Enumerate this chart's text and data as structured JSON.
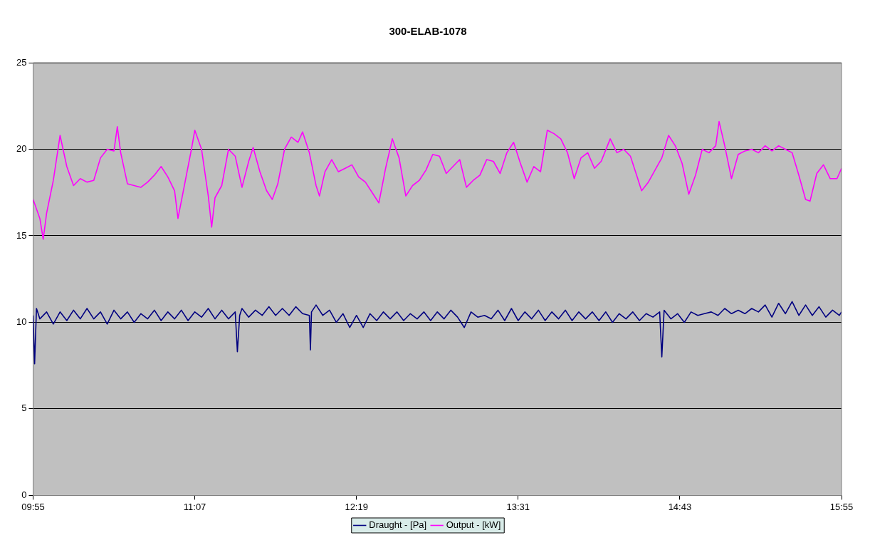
{
  "chart_data": {
    "type": "line",
    "title": "300-ELAB-1078",
    "xlim": [
      9.9167,
      15.9167
    ],
    "xticks": [
      {
        "value": 9.9167,
        "label": "09:55"
      },
      {
        "value": 11.1167,
        "label": "11:07"
      },
      {
        "value": 12.3167,
        "label": "12:19"
      },
      {
        "value": 13.5167,
        "label": "13:31"
      },
      {
        "value": 14.7167,
        "label": "14:43"
      },
      {
        "value": 15.9167,
        "label": "15:55"
      }
    ],
    "ylim": [
      0,
      25
    ],
    "yticks": [
      0,
      5,
      10,
      15,
      20,
      25
    ],
    "grid": "y",
    "legend": "bottom",
    "marker": "none",
    "series": [
      {
        "name": "Draught - [Pa]",
        "color": "#000080",
        "x": [
          9.917,
          9.928,
          9.942,
          9.967,
          10.017,
          10.067,
          10.117,
          10.167,
          10.217,
          10.267,
          10.317,
          10.367,
          10.417,
          10.467,
          10.517,
          10.567,
          10.617,
          10.667,
          10.717,
          10.767,
          10.817,
          10.867,
          10.917,
          10.967,
          11.017,
          11.067,
          11.117,
          11.167,
          11.217,
          11.267,
          11.317,
          11.367,
          11.417,
          11.433,
          11.45,
          11.467,
          11.517,
          11.567,
          11.617,
          11.667,
          11.717,
          11.767,
          11.817,
          11.867,
          11.917,
          11.967,
          11.975,
          11.983,
          12.017,
          12.067,
          12.117,
          12.167,
          12.217,
          12.267,
          12.317,
          12.367,
          12.417,
          12.467,
          12.517,
          12.567,
          12.617,
          12.667,
          12.717,
          12.767,
          12.817,
          12.867,
          12.917,
          12.967,
          13.017,
          13.067,
          13.117,
          13.167,
          13.217,
          13.267,
          13.317,
          13.367,
          13.417,
          13.467,
          13.517,
          13.567,
          13.617,
          13.667,
          13.717,
          13.767,
          13.817,
          13.867,
          13.917,
          13.967,
          14.017,
          14.067,
          14.117,
          14.167,
          14.217,
          14.267,
          14.317,
          14.367,
          14.417,
          14.467,
          14.517,
          14.567,
          14.583,
          14.6,
          14.65,
          14.7,
          14.75,
          14.8,
          14.85,
          14.9,
          14.95,
          15.0,
          15.05,
          15.1,
          15.15,
          15.2,
          15.25,
          15.3,
          15.35,
          15.4,
          15.45,
          15.5,
          15.55,
          15.6,
          15.65,
          15.7,
          15.75,
          15.8,
          15.85,
          15.9,
          15.9167
        ],
        "values": [
          10.4,
          7.6,
          10.8,
          10.2,
          10.6,
          9.9,
          10.6,
          10.1,
          10.7,
          10.2,
          10.8,
          10.2,
          10.6,
          9.9,
          10.7,
          10.2,
          10.6,
          10.0,
          10.5,
          10.2,
          10.7,
          10.1,
          10.6,
          10.2,
          10.7,
          10.1,
          10.6,
          10.3,
          10.8,
          10.2,
          10.7,
          10.2,
          10.6,
          8.3,
          10.4,
          10.8,
          10.3,
          10.7,
          10.4,
          10.9,
          10.4,
          10.8,
          10.4,
          10.9,
          10.5,
          10.4,
          8.4,
          10.6,
          11.0,
          10.4,
          10.7,
          10.0,
          10.5,
          9.7,
          10.4,
          9.7,
          10.5,
          10.1,
          10.6,
          10.2,
          10.6,
          10.1,
          10.5,
          10.2,
          10.6,
          10.1,
          10.6,
          10.2,
          10.7,
          10.3,
          9.7,
          10.6,
          10.3,
          10.4,
          10.2,
          10.7,
          10.1,
          10.8,
          10.1,
          10.6,
          10.2,
          10.7,
          10.1,
          10.6,
          10.2,
          10.7,
          10.1,
          10.6,
          10.2,
          10.6,
          10.1,
          10.6,
          10.0,
          10.5,
          10.2,
          10.6,
          10.1,
          10.5,
          10.3,
          10.6,
          8.0,
          10.7,
          10.2,
          10.5,
          10.0,
          10.6,
          10.4,
          10.5,
          10.6,
          10.4,
          10.8,
          10.5,
          10.7,
          10.5,
          10.8,
          10.6,
          11.0,
          10.3,
          11.1,
          10.5,
          11.2,
          10.4,
          11.0,
          10.4,
          10.9,
          10.3,
          10.7,
          10.4,
          10.6
        ]
      },
      {
        "name": "Output - [kW]",
        "color": "#ff00ff",
        "x": [
          9.917,
          9.967,
          9.992,
          10.017,
          10.067,
          10.117,
          10.167,
          10.217,
          10.267,
          10.317,
          10.367,
          10.417,
          10.467,
          10.517,
          10.542,
          10.567,
          10.617,
          10.667,
          10.717,
          10.767,
          10.817,
          10.867,
          10.917,
          10.967,
          10.992,
          11.042,
          11.092,
          11.117,
          11.167,
          11.217,
          11.242,
          11.267,
          11.317,
          11.367,
          11.417,
          11.467,
          11.517,
          11.55,
          11.6,
          11.65,
          11.692,
          11.733,
          11.783,
          11.833,
          11.883,
          11.917,
          11.967,
          12.017,
          12.042,
          12.083,
          12.133,
          12.183,
          12.233,
          12.283,
          12.333,
          12.383,
          12.433,
          12.483,
          12.533,
          12.583,
          12.633,
          12.683,
          12.733,
          12.783,
          12.833,
          12.883,
          12.933,
          12.983,
          13.033,
          13.083,
          13.133,
          13.183,
          13.233,
          13.283,
          13.333,
          13.383,
          13.433,
          13.483,
          13.533,
          13.583,
          13.633,
          13.683,
          13.733,
          13.783,
          13.833,
          13.883,
          13.933,
          13.983,
          14.033,
          14.083,
          14.133,
          14.2,
          14.25,
          14.3,
          14.35,
          14.4,
          14.433,
          14.483,
          14.533,
          14.583,
          14.633,
          14.683,
          14.733,
          14.783,
          14.833,
          14.883,
          14.933,
          14.983,
          15.008,
          15.05,
          15.1,
          15.15,
          15.2,
          15.25,
          15.3,
          15.35,
          15.4,
          15.45,
          15.5,
          15.55,
          15.6,
          15.65,
          15.683,
          15.733,
          15.783,
          15.833,
          15.883,
          15.9167
        ],
        "values": [
          17.1,
          16.0,
          14.8,
          16.3,
          18.2,
          20.8,
          19.0,
          17.9,
          18.3,
          18.1,
          18.2,
          19.5,
          20.0,
          19.9,
          21.3,
          19.8,
          18.0,
          17.9,
          17.8,
          18.1,
          18.5,
          19.0,
          18.4,
          17.6,
          16.0,
          18.0,
          20.0,
          21.1,
          20.0,
          17.3,
          15.5,
          17.2,
          17.9,
          20.0,
          19.6,
          17.8,
          19.3,
          20.1,
          18.7,
          17.6,
          17.1,
          18.0,
          20.0,
          20.7,
          20.4,
          21.0,
          19.8,
          17.9,
          17.3,
          18.7,
          19.4,
          18.7,
          18.9,
          19.1,
          18.4,
          18.1,
          17.5,
          16.9,
          18.9,
          20.6,
          19.5,
          17.3,
          17.9,
          18.2,
          18.8,
          19.7,
          19.6,
          18.6,
          19.0,
          19.4,
          17.8,
          18.2,
          18.5,
          19.4,
          19.3,
          18.6,
          19.8,
          20.4,
          19.2,
          18.1,
          19.0,
          18.7,
          21.1,
          20.9,
          20.6,
          19.8,
          18.3,
          19.5,
          19.8,
          18.9,
          19.3,
          20.6,
          19.8,
          20.0,
          19.6,
          18.4,
          17.6,
          18.1,
          18.8,
          19.5,
          20.8,
          20.2,
          19.2,
          17.4,
          18.5,
          20.0,
          19.8,
          20.2,
          21.6,
          20.2,
          18.3,
          19.7,
          19.9,
          20.0,
          19.8,
          20.2,
          19.9,
          20.2,
          20.0,
          19.8,
          18.5,
          17.1,
          17.0,
          18.6,
          19.1,
          18.3,
          18.3,
          18.9
        ]
      }
    ]
  }
}
